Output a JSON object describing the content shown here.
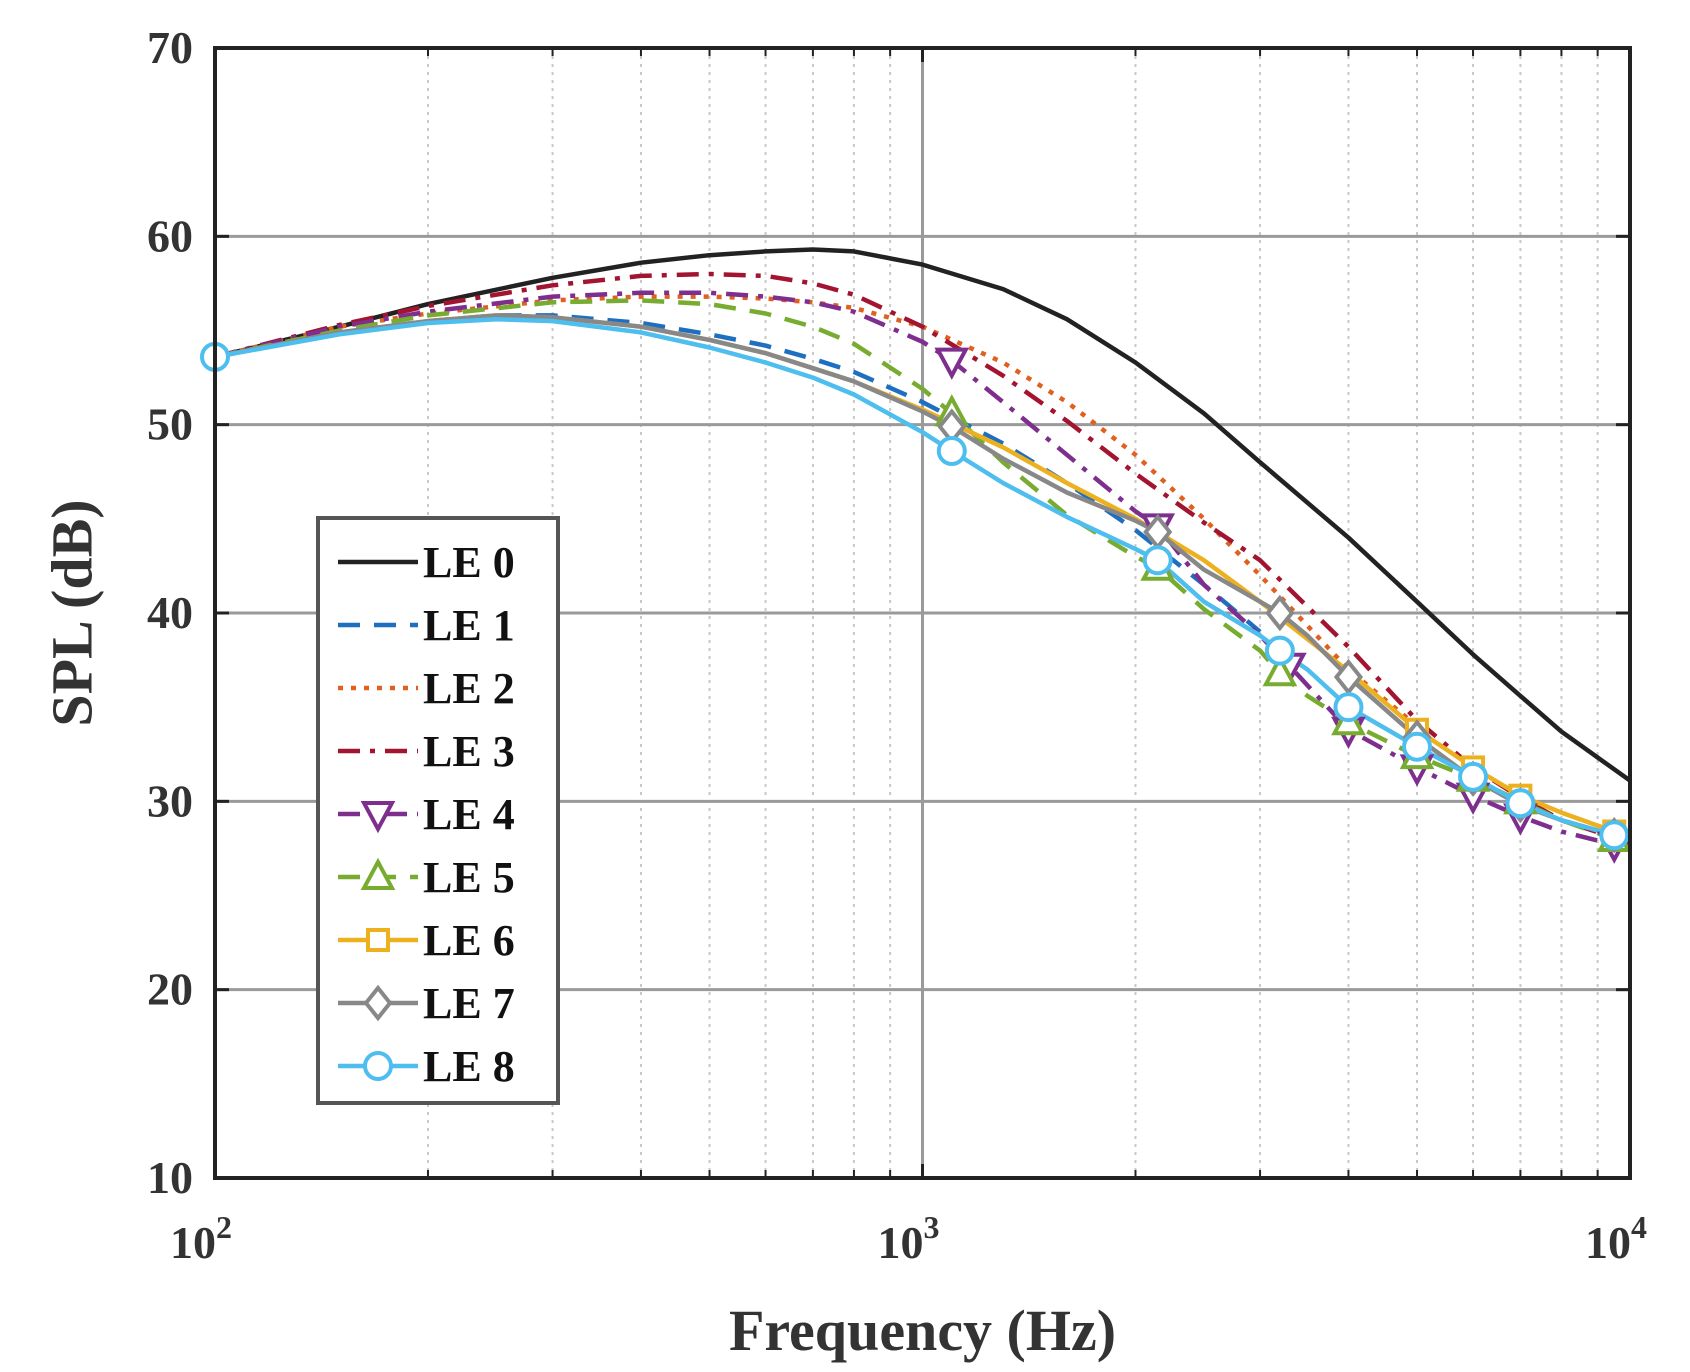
{
  "chart_data": {
    "type": "line",
    "xscale": "log",
    "xlim": [
      100,
      10000
    ],
    "ylim": [
      10,
      70
    ],
    "grid": true,
    "xlabel": "Frequency (Hz)",
    "ylabel": "SPL (dB)",
    "xticks": [
      {
        "value": 100,
        "base": "10",
        "exp": "2"
      },
      {
        "value": 1000,
        "base": "10",
        "exp": "3"
      },
      {
        "value": 10000,
        "base": "10",
        "exp": "4"
      }
    ],
    "yticks": [
      {
        "value": 10,
        "label": "10"
      },
      {
        "value": 20,
        "label": "20"
      },
      {
        "value": 30,
        "label": "30"
      },
      {
        "value": 40,
        "label": "40"
      },
      {
        "value": 50,
        "label": "50"
      },
      {
        "value": 60,
        "label": "60"
      },
      {
        "value": 70,
        "label": "70"
      }
    ],
    "legend_position": "lower-left",
    "series": [
      {
        "name": "LE 0",
        "color": "#222222",
        "dash": "solid",
        "marker": "none",
        "x": [
          100,
          150,
          200,
          300,
          400,
          500,
          600,
          700,
          800,
          1000,
          1300,
          1600,
          2000,
          2500,
          3000,
          4000,
          5000,
          6000,
          7000,
          8000,
          10000
        ],
        "y": [
          53.6,
          55.2,
          56.4,
          57.8,
          58.6,
          59.0,
          59.2,
          59.3,
          59.2,
          58.5,
          57.2,
          55.6,
          53.3,
          50.6,
          48.0,
          44.0,
          40.6,
          37.8,
          35.6,
          33.7,
          31.1
        ],
        "marker_x": []
      },
      {
        "name": "LE 1",
        "color": "#1f6fc0",
        "dash": "dashed",
        "marker": "none",
        "x": [
          100,
          150,
          200,
          250,
          300,
          400,
          500,
          600,
          700,
          800,
          1000,
          1300,
          1600,
          2000,
          2500,
          3000
        ],
        "y": [
          53.6,
          54.9,
          55.5,
          55.8,
          55.8,
          55.4,
          54.8,
          54.2,
          53.5,
          52.8,
          51.2,
          49.0,
          46.9,
          44.4,
          41.5,
          39.0
        ],
        "marker_x": []
      },
      {
        "name": "LE 2",
        "color": "#e06020",
        "dash": "dotted",
        "marker": "none",
        "x": [
          100,
          150,
          200,
          300,
          400,
          500,
          600,
          700,
          800,
          1000,
          1300,
          1600,
          2000,
          2500,
          3000,
          4000,
          5000
        ],
        "y": [
          53.6,
          55.2,
          55.9,
          56.6,
          56.8,
          56.8,
          56.7,
          56.5,
          56.2,
          55.2,
          53.3,
          51.2,
          48.4,
          45.0,
          42.0,
          37.0,
          34.0
        ],
        "marker_x": []
      },
      {
        "name": "LE 3",
        "color": "#a2142f",
        "dash": "dashdot",
        "marker": "none",
        "x": [
          100,
          150,
          200,
          300,
          400,
          500,
          600,
          700,
          800,
          1000,
          1300,
          1600,
          2000,
          2500,
          3000,
          4000,
          5000,
          6000,
          7000,
          8000,
          10000
        ],
        "y": [
          53.6,
          55.3,
          56.3,
          57.4,
          57.9,
          58.0,
          57.9,
          57.5,
          56.9,
          55.2,
          52.6,
          50.2,
          47.4,
          44.8,
          42.8,
          38.2,
          34.3,
          31.8,
          30.2,
          29.0,
          27.8
        ],
        "marker_x": []
      },
      {
        "name": "LE 4",
        "color": "#7e2f8e",
        "dash": "dashdot",
        "marker": "triangle-down",
        "x": [
          100,
          150,
          200,
          300,
          400,
          500,
          600,
          700,
          800,
          1000,
          1100,
          1300,
          1600,
          2000,
          2150,
          2500,
          3000,
          3300,
          4000,
          5000,
          6000,
          7000,
          8000,
          9500,
          10000
        ],
        "y": [
          53.6,
          55.2,
          56.0,
          56.8,
          57.0,
          57.0,
          56.8,
          56.5,
          56.0,
          54.4,
          53.4,
          51.2,
          48.4,
          45.4,
          44.6,
          41.5,
          38.8,
          37.2,
          33.8,
          31.8,
          30.3,
          29.2,
          28.4,
          27.7,
          27.6
        ],
        "marker_x": [
          1100,
          2150,
          3300,
          4000,
          5000,
          6000,
          7000,
          9500
        ]
      },
      {
        "name": "LE 5",
        "color": "#77ac30",
        "dash": "dashed",
        "marker": "triangle-up",
        "x": [
          100,
          150,
          200,
          300,
          400,
          500,
          600,
          700,
          800,
          1000,
          1100,
          1300,
          1600,
          2000,
          2150,
          2500,
          3000,
          3200,
          3500,
          4000,
          5000,
          6000,
          7000,
          8000,
          9500,
          10000
        ],
        "y": [
          53.6,
          55.0,
          55.8,
          56.5,
          56.6,
          56.4,
          55.9,
          55.2,
          54.3,
          51.9,
          50.6,
          48.0,
          45.2,
          43.0,
          42.4,
          40.2,
          38.0,
          36.8,
          35.6,
          34.2,
          32.4,
          31.2,
          30.0,
          29.0,
          28.0,
          27.8
        ],
        "marker_x": [
          1100,
          2150,
          3200,
          4000,
          5000,
          6000,
          7000,
          9500
        ]
      },
      {
        "name": "LE 6",
        "color": "#edb120",
        "dash": "solid",
        "marker": "square",
        "x": [
          100,
          150,
          200,
          250,
          300,
          400,
          500,
          600,
          700,
          800,
          1000,
          1300,
          1600,
          2000,
          2500,
          3000,
          4000,
          5000,
          6000,
          7000,
          8000,
          9500,
          10000
        ],
        "y": [
          53.6,
          54.9,
          55.5,
          55.8,
          55.7,
          55.2,
          54.5,
          53.8,
          53.0,
          52.3,
          50.8,
          48.8,
          46.9,
          45.0,
          42.8,
          40.6,
          36.9,
          33.8,
          31.8,
          30.3,
          29.4,
          28.4,
          28.0
        ],
        "marker_x": [
          5000,
          6000,
          7000,
          9500
        ]
      },
      {
        "name": "LE 7",
        "color": "#888888",
        "dash": "solid",
        "marker": "diamond",
        "x": [
          100,
          150,
          200,
          250,
          300,
          400,
          500,
          600,
          700,
          800,
          1000,
          1100,
          1300,
          1600,
          2000,
          2150,
          2500,
          3000,
          3200,
          3500,
          4000,
          5000,
          6000,
          7000,
          8000,
          9500,
          10000
        ],
        "y": [
          53.6,
          54.9,
          55.5,
          55.8,
          55.7,
          55.2,
          54.5,
          53.8,
          53.0,
          52.3,
          50.7,
          49.9,
          48.2,
          46.4,
          44.9,
          44.3,
          42.3,
          40.6,
          40.0,
          38.8,
          36.6,
          33.4,
          31.2,
          29.8,
          29.0,
          28.2,
          28.0
        ],
        "marker_x": [
          1100,
          2150,
          3200,
          4000,
          5000,
          6000,
          7000,
          9500
        ]
      },
      {
        "name": "LE 8",
        "color": "#4dbeee",
        "dash": "solid",
        "marker": "circle",
        "x": [
          100,
          150,
          200,
          250,
          300,
          400,
          500,
          600,
          700,
          800,
          1000,
          1100,
          1300,
          1600,
          2000,
          2150,
          2500,
          3000,
          3200,
          3500,
          4000,
          5000,
          6000,
          7000,
          8000,
          9500,
          10000
        ],
        "y": [
          53.6,
          54.8,
          55.4,
          55.6,
          55.5,
          54.9,
          54.1,
          53.3,
          52.5,
          51.6,
          49.6,
          48.6,
          46.9,
          45.1,
          43.4,
          42.8,
          40.6,
          38.8,
          38.0,
          37.0,
          35.0,
          32.9,
          31.3,
          29.9,
          29.0,
          28.2,
          28.0
        ],
        "marker_x": [
          100,
          1100,
          2150,
          3200,
          4000,
          5000,
          6000,
          7000,
          9500
        ]
      }
    ]
  }
}
